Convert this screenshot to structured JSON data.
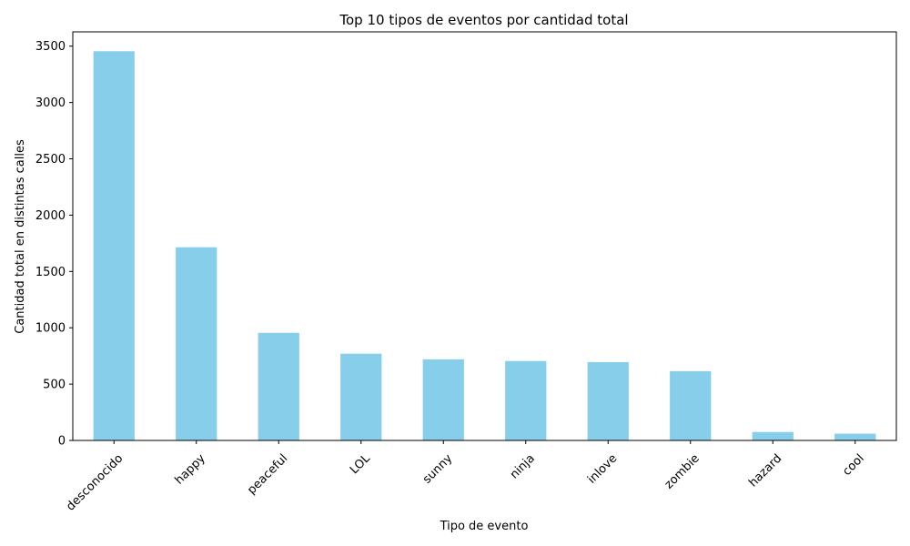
{
  "chart_data": {
    "type": "bar",
    "title": "Top 10 tipos de eventos por cantidad total",
    "xlabel": "Tipo de evento",
    "ylabel": "Cantidad total en distintas calles",
    "categories": [
      "desconocido",
      "happy",
      "peaceful",
      "LOL",
      "sunny",
      "ninja",
      "inlove",
      "zombie",
      "hazard",
      "cool"
    ],
    "values": [
      3455,
      1715,
      955,
      770,
      720,
      705,
      695,
      615,
      75,
      60
    ],
    "ylim": [
      0,
      3627
    ],
    "yticks": [
      0,
      500,
      1000,
      1500,
      2000,
      2500,
      3000,
      3500
    ],
    "bar_color": "#87ceeb",
    "grid": false,
    "legend": "none"
  }
}
